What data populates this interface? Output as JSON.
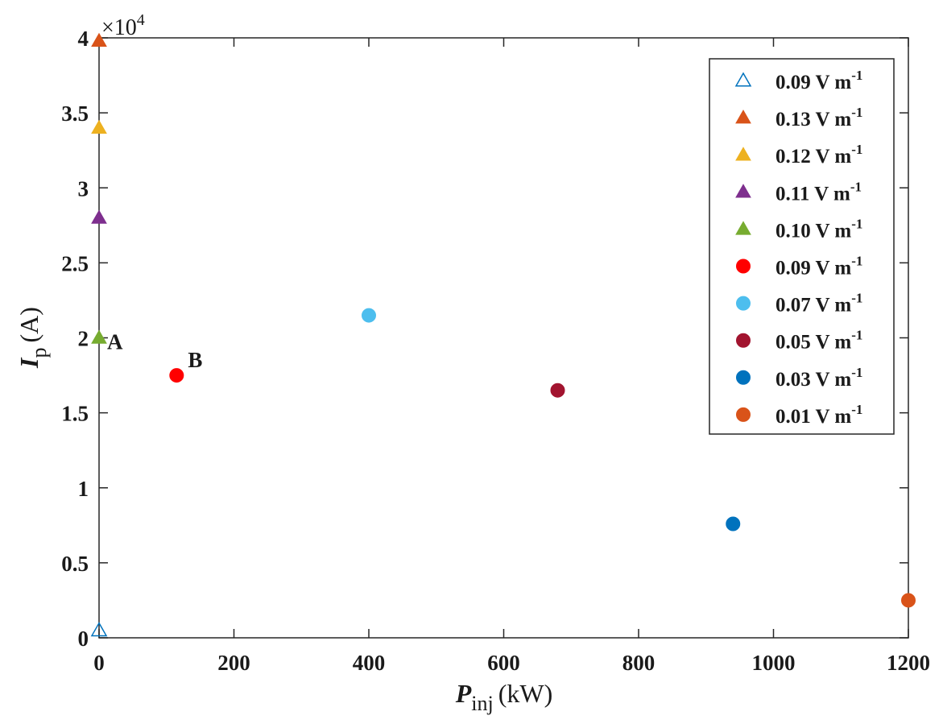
{
  "chart_data": {
    "type": "scatter",
    "xlabel": {
      "symbol": "P",
      "subscript": "inj",
      "unit": "(kW)"
    },
    "ylabel": {
      "symbol": "I",
      "subscript": "p",
      "unit": "(A)"
    },
    "y_multiplier": {
      "prefix": "×10",
      "exponent": "4"
    },
    "xlim": [
      0,
      1200
    ],
    "ylim": [
      0,
      40000
    ],
    "xticks": [
      0,
      200,
      400,
      600,
      800,
      1000,
      1200
    ],
    "xtick_labels": [
      "0",
      "200",
      "400",
      "600",
      "800",
      "1000",
      "1200"
    ],
    "yticks": [
      0,
      5000,
      10000,
      15000,
      20000,
      25000,
      30000,
      35000,
      40000
    ],
    "ytick_labels": [
      "0",
      "0.5",
      "1",
      "1.5",
      "2",
      "2.5",
      "3",
      "3.5",
      "4"
    ],
    "grid": false,
    "legend_position": "top-right",
    "series": [
      {
        "name": "0.09 V m",
        "exp": "-1",
        "marker": "triangle-open",
        "color": "#0072bd",
        "x": [
          0
        ],
        "y": [
          500
        ]
      },
      {
        "name": "0.13 V m",
        "exp": "-1",
        "marker": "triangle",
        "color": "#d95319",
        "x": [
          0
        ],
        "y": [
          39800
        ]
      },
      {
        "name": "0.12 V m",
        "exp": "-1",
        "marker": "triangle",
        "color": "#edb120",
        "x": [
          0
        ],
        "y": [
          34000
        ]
      },
      {
        "name": "0.11 V m",
        "exp": "-1",
        "marker": "triangle",
        "color": "#7e2f8e",
        "x": [
          0
        ],
        "y": [
          28000
        ]
      },
      {
        "name": "0.10 V m",
        "exp": "-1",
        "marker": "triangle",
        "color": "#77ac30",
        "x": [
          0
        ],
        "y": [
          20000
        ]
      },
      {
        "name": "0.09 V m",
        "exp": "-1",
        "marker": "circle",
        "color": "#ff0000",
        "x": [
          115
        ],
        "y": [
          17500
        ]
      },
      {
        "name": "0.07 V m",
        "exp": "-1",
        "marker": "circle",
        "color": "#4dbeee",
        "x": [
          400
        ],
        "y": [
          21500
        ]
      },
      {
        "name": "0.05 V m",
        "exp": "-1",
        "marker": "circle",
        "color": "#a2142f",
        "x": [
          680
        ],
        "y": [
          16500
        ]
      },
      {
        "name": "0.03 V m",
        "exp": "-1",
        "marker": "circle",
        "color": "#0072bd",
        "x": [
          940
        ],
        "y": [
          7600
        ]
      },
      {
        "name": "0.01 V m",
        "exp": "-1",
        "marker": "circle",
        "color": "#d95319",
        "x": [
          1200
        ],
        "y": [
          2500
        ]
      }
    ],
    "annotations": [
      {
        "text": "A",
        "x": 0,
        "y": 20000
      },
      {
        "text": "B",
        "x": 115,
        "y": 17500
      }
    ]
  }
}
